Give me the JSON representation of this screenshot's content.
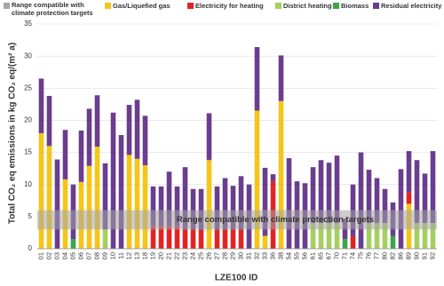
{
  "chart_data": {
    "type": "stacked_bar",
    "y_label": "Total CO₂ eq emissions in kg CO₂ eq/(m² a)",
    "x_label": "LZE100 ID",
    "categories": [
      "01",
      "02",
      "03",
      "04",
      "05",
      "06",
      "07",
      "08",
      "09",
      "10",
      "11",
      "12",
      "13",
      "18",
      "19",
      "20",
      "21",
      "22",
      "23",
      "24",
      "25",
      "26",
      "27",
      "28",
      "29",
      "30",
      "31",
      "32",
      "33",
      "36",
      "38",
      "54",
      "55",
      "56",
      "61",
      "65",
      "67",
      "70",
      "71",
      "74",
      "75",
      "76",
      "77",
      "80",
      "82",
      "86",
      "89",
      "90",
      "91",
      "92"
    ],
    "series": [
      {
        "name": "Gas/Liquefied gas",
        "color": "#f5c518",
        "values": [
          18,
          16,
          0,
          10.8,
          0,
          10.4,
          12.9,
          15.9,
          0,
          0,
          0,
          14.6,
          14,
          13,
          0,
          0,
          0,
          0,
          0,
          0,
          0,
          13.8,
          0,
          0,
          0,
          0,
          0,
          21.5,
          2,
          0,
          23,
          0,
          0,
          0,
          0,
          0,
          0,
          0,
          0,
          0,
          0,
          0,
          0,
          0,
          0,
          0,
          7,
          0,
          0,
          0
        ]
      },
      {
        "name": "Electricity for heating",
        "color": "#e02424",
        "values": [
          0,
          0,
          0,
          0,
          0,
          0,
          0,
          0,
          0,
          0,
          0,
          0,
          0,
          0,
          3.5,
          3.5,
          3.5,
          3.5,
          3,
          3,
          3,
          0,
          3,
          3,
          3,
          3,
          0,
          0,
          0,
          10.5,
          0,
          0,
          0,
          0,
          0,
          0,
          0,
          0,
          0,
          2,
          0,
          0,
          0,
          0,
          0,
          0,
          1.8,
          0,
          0,
          0
        ]
      },
      {
        "name": "District heating",
        "color": "#a5cf5f",
        "values": [
          0,
          0,
          0,
          0,
          0,
          0,
          0,
          0,
          3,
          0,
          0,
          0,
          0,
          0,
          0,
          0,
          0,
          0,
          0,
          0,
          0,
          0,
          0,
          0,
          0,
          0,
          0,
          0,
          0,
          0,
          0,
          0,
          0,
          0,
          4,
          4,
          4,
          4,
          0,
          0,
          0,
          4,
          4,
          4,
          0,
          0,
          0,
          4,
          4,
          4
        ]
      },
      {
        "name": "Biomass",
        "color": "#3aa64c",
        "values": [
          0,
          0,
          0,
          0,
          1.5,
          0,
          0,
          0,
          0,
          0,
          0,
          0,
          0,
          0,
          0,
          0,
          0,
          0,
          0,
          0,
          0,
          0,
          0,
          0,
          0,
          0,
          0,
          0,
          0,
          0,
          0,
          0,
          0,
          0,
          0,
          0,
          0,
          0,
          1.5,
          0,
          0,
          0,
          0,
          0,
          2,
          0,
          0,
          0,
          0,
          0
        ]
      },
      {
        "name": "Residual electricity",
        "color": "#6a3d8f",
        "values": [
          8.5,
          7.8,
          13.9,
          7.7,
          8.5,
          8,
          8.9,
          8,
          10.3,
          21.2,
          17.7,
          7.8,
          9.2,
          7.7,
          6.2,
          6.2,
          8.5,
          6.2,
          9.7,
          6.3,
          6.3,
          7.3,
          6.7,
          8,
          6.8,
          8.3,
          10,
          9.9,
          10.6,
          1.1,
          7.1,
          14.1,
          10.5,
          10.2,
          8.7,
          9.8,
          9.4,
          10.5,
          3.2,
          8,
          15,
          8.3,
          7,
          5.3,
          5.2,
          12.4,
          6.4,
          9.8,
          7.7,
          11.2
        ]
      }
    ],
    "band": {
      "label": "Range compatible with climate protection targets",
      "range": [
        3,
        6
      ],
      "color": "#a6a6a6"
    },
    "ylim": [
      0,
      35
    ],
    "yticks": [
      0,
      5,
      10,
      15,
      20,
      25,
      30,
      35
    ],
    "grid": true
  }
}
